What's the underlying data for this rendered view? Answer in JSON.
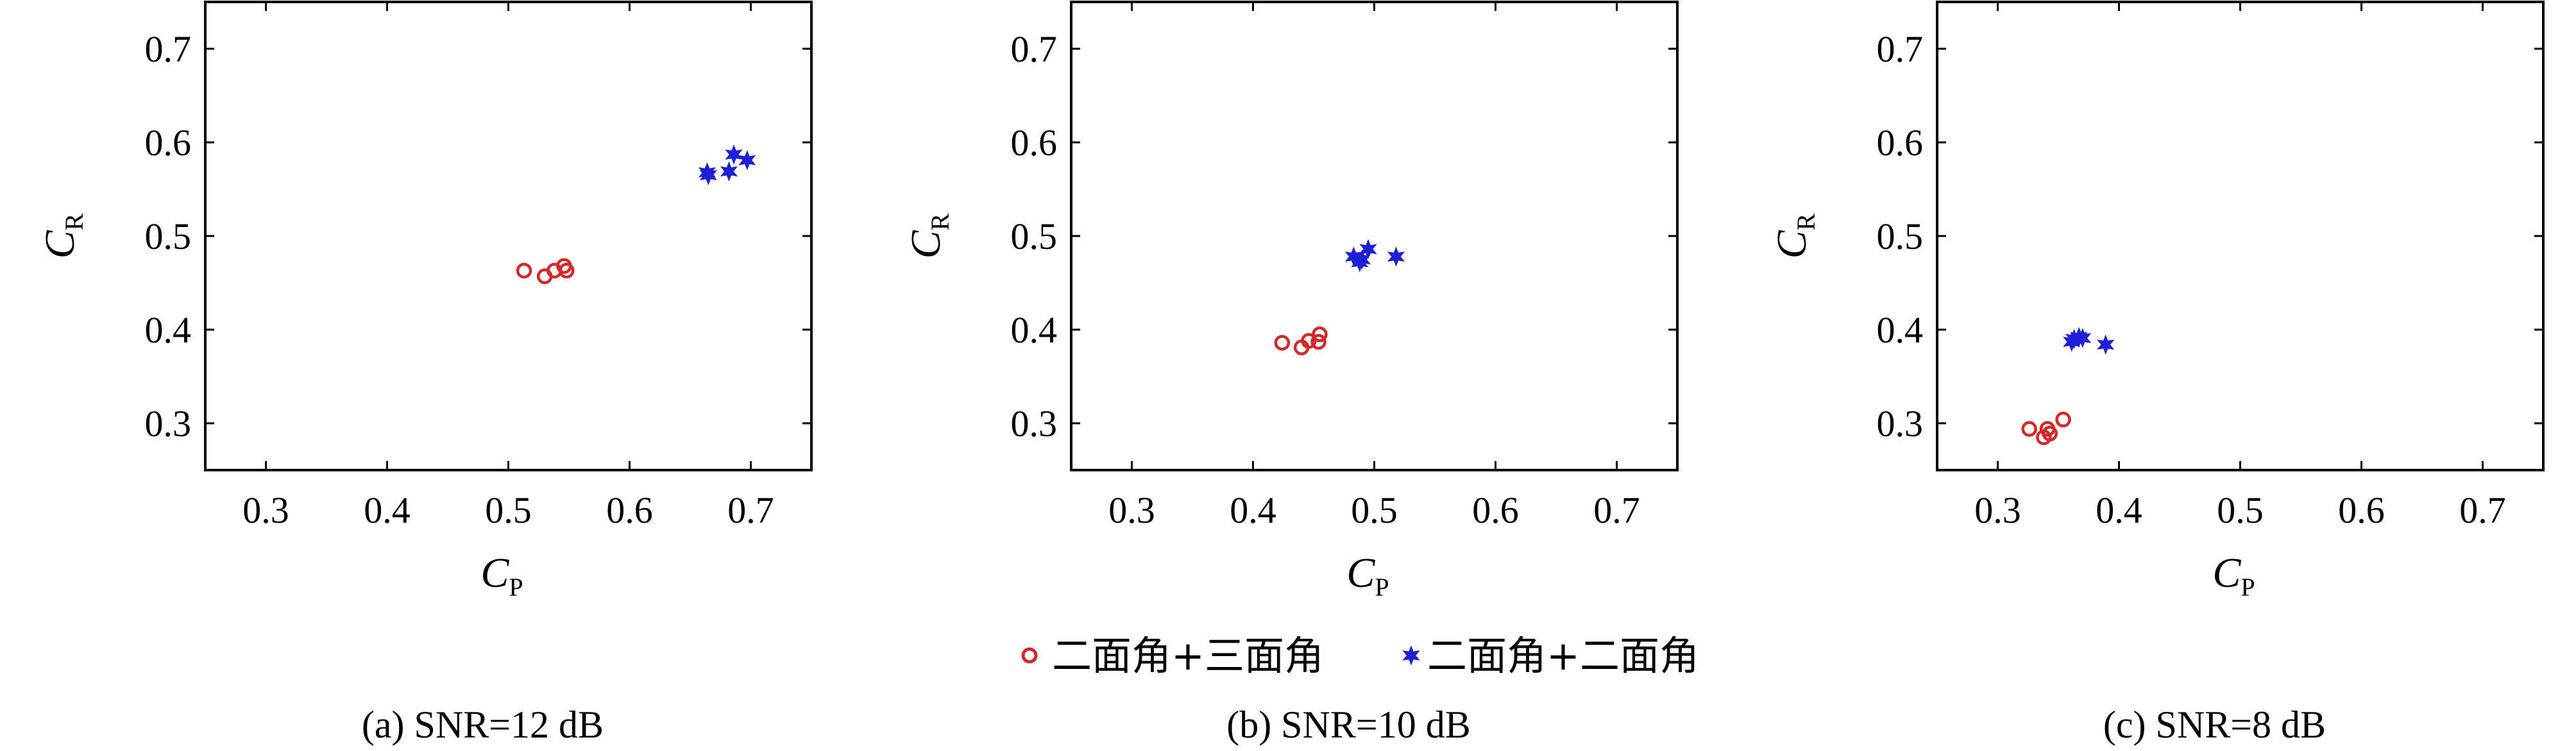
{
  "colors": {
    "series_a": "#d62728",
    "series_b": "#1f1fd6",
    "frame": "#000000"
  },
  "legend": {
    "items": [
      {
        "label": "二面角+三面角",
        "marker": "open-circle",
        "color": "#d62728"
      },
      {
        "label": "二面角+二面角",
        "marker": "filled-star",
        "color": "#1f1fd6"
      }
    ],
    "placement": "bottom-center"
  },
  "chart_data": [
    {
      "type": "scatter",
      "caption": "(a) SNR=12 dB",
      "xlabel": "C",
      "xlabel_sub": "P",
      "ylabel": "C",
      "ylabel_sub": "R",
      "xlim": [
        0.25,
        0.75
      ],
      "ylim": [
        0.25,
        0.75
      ],
      "xticks": [
        0.3,
        0.4,
        0.5,
        0.6,
        0.7
      ],
      "yticks": [
        0.3,
        0.4,
        0.5,
        0.6,
        0.7
      ],
      "grid": false,
      "series": [
        {
          "name": "二面角+三面角",
          "marker": "open-circle",
          "points": [
            [
              0.513,
              0.463
            ],
            [
              0.53,
              0.457
            ],
            [
              0.538,
              0.463
            ],
            [
              0.546,
              0.468
            ],
            [
              0.548,
              0.463
            ]
          ]
        },
        {
          "name": "二面角+二面角",
          "marker": "filled-star",
          "points": [
            [
              0.664,
              0.568
            ],
            [
              0.665,
              0.565
            ],
            [
              0.682,
              0.569
            ],
            [
              0.686,
              0.587
            ],
            [
              0.697,
              0.581
            ]
          ]
        }
      ]
    },
    {
      "type": "scatter",
      "caption": "(b) SNR=10 dB",
      "xlabel": "C",
      "xlabel_sub": "P",
      "ylabel": "C",
      "ylabel_sub": "R",
      "xlim": [
        0.25,
        0.75
      ],
      "ylim": [
        0.25,
        0.75
      ],
      "xticks": [
        0.3,
        0.4,
        0.5,
        0.6,
        0.7
      ],
      "yticks": [
        0.3,
        0.4,
        0.5,
        0.6,
        0.7
      ],
      "grid": false,
      "series": [
        {
          "name": "二面角+三面角",
          "marker": "open-circle",
          "points": [
            [
              0.424,
              0.386
            ],
            [
              0.44,
              0.381
            ],
            [
              0.446,
              0.388
            ],
            [
              0.454,
              0.387
            ],
            [
              0.455,
              0.395
            ]
          ]
        },
        {
          "name": "二面角+二面角",
          "marker": "filled-star",
          "points": [
            [
              0.483,
              0.478
            ],
            [
              0.488,
              0.472
            ],
            [
              0.49,
              0.475
            ],
            [
              0.495,
              0.486
            ],
            [
              0.518,
              0.478
            ]
          ]
        }
      ]
    },
    {
      "type": "scatter",
      "caption": "(c) SNR=8 dB",
      "xlabel": "C",
      "xlabel_sub": "P",
      "ylabel": "C",
      "ylabel_sub": "R",
      "xlim": [
        0.25,
        0.75
      ],
      "ylim": [
        0.25,
        0.75
      ],
      "xticks": [
        0.3,
        0.4,
        0.5,
        0.6,
        0.7
      ],
      "yticks": [
        0.3,
        0.4,
        0.5,
        0.6,
        0.7
      ],
      "grid": false,
      "series": [
        {
          "name": "二面角+三面角",
          "marker": "open-circle",
          "points": [
            [
              0.326,
              0.294
            ],
            [
              0.338,
              0.285
            ],
            [
              0.341,
              0.294
            ],
            [
              0.343,
              0.289
            ],
            [
              0.354,
              0.304
            ]
          ]
        },
        {
          "name": "二面角+二面角",
          "marker": "filled-star",
          "points": [
            [
              0.361,
              0.387
            ],
            [
              0.363,
              0.39
            ],
            [
              0.367,
              0.392
            ],
            [
              0.37,
              0.391
            ],
            [
              0.389,
              0.384
            ]
          ]
        }
      ]
    }
  ]
}
